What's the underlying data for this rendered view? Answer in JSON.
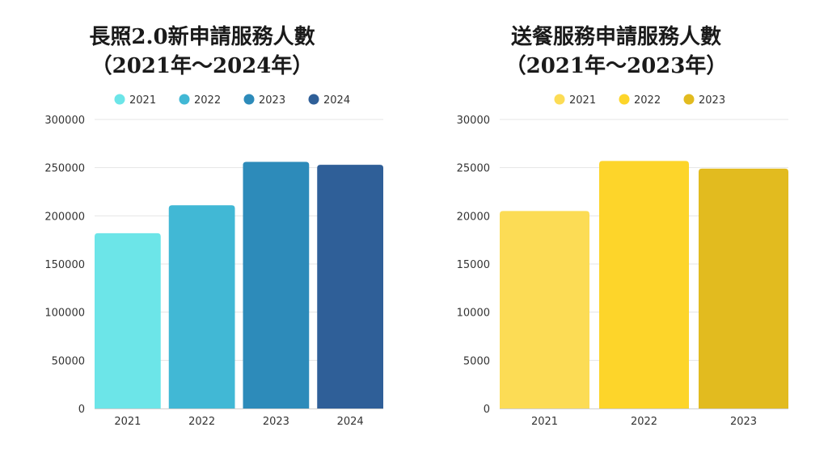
{
  "chart_data": [
    {
      "type": "bar",
      "title_line1": "長照2.0新申請服務人數",
      "title_line2": "（2021年～2024年）",
      "categories": [
        "2021",
        "2022",
        "2023",
        "2024"
      ],
      "values": [
        182000,
        211000,
        256000,
        253000
      ],
      "legend": [
        "2021",
        "2022",
        "2023",
        "2024"
      ],
      "colors": [
        "#6ce5e8",
        "#41b8d5",
        "#2d8bba",
        "#2f5f98"
      ],
      "yticks": [
        "0",
        "50000",
        "100000",
        "150000",
        "200000",
        "250000",
        "300000"
      ],
      "ylim": [
        0,
        300000
      ],
      "xlabel": "",
      "ylabel": "",
      "legend_position": "top"
    },
    {
      "type": "bar",
      "title_line1": "送餐服務申請服務人數",
      "title_line2": "（2021年～2023年）",
      "categories": [
        "2021",
        "2022",
        "2023"
      ],
      "values": [
        20500,
        25700,
        24900
      ],
      "legend": [
        "2021",
        "2022",
        "2023"
      ],
      "colors": [
        "#fcdc55",
        "#fdd52a",
        "#e2bb1f"
      ],
      "yticks": [
        "0",
        "5000",
        "10000",
        "15000",
        "20000",
        "25000",
        "30000"
      ],
      "ylim": [
        0,
        30000
      ],
      "xlabel": "",
      "ylabel": "",
      "legend_position": "top"
    }
  ]
}
